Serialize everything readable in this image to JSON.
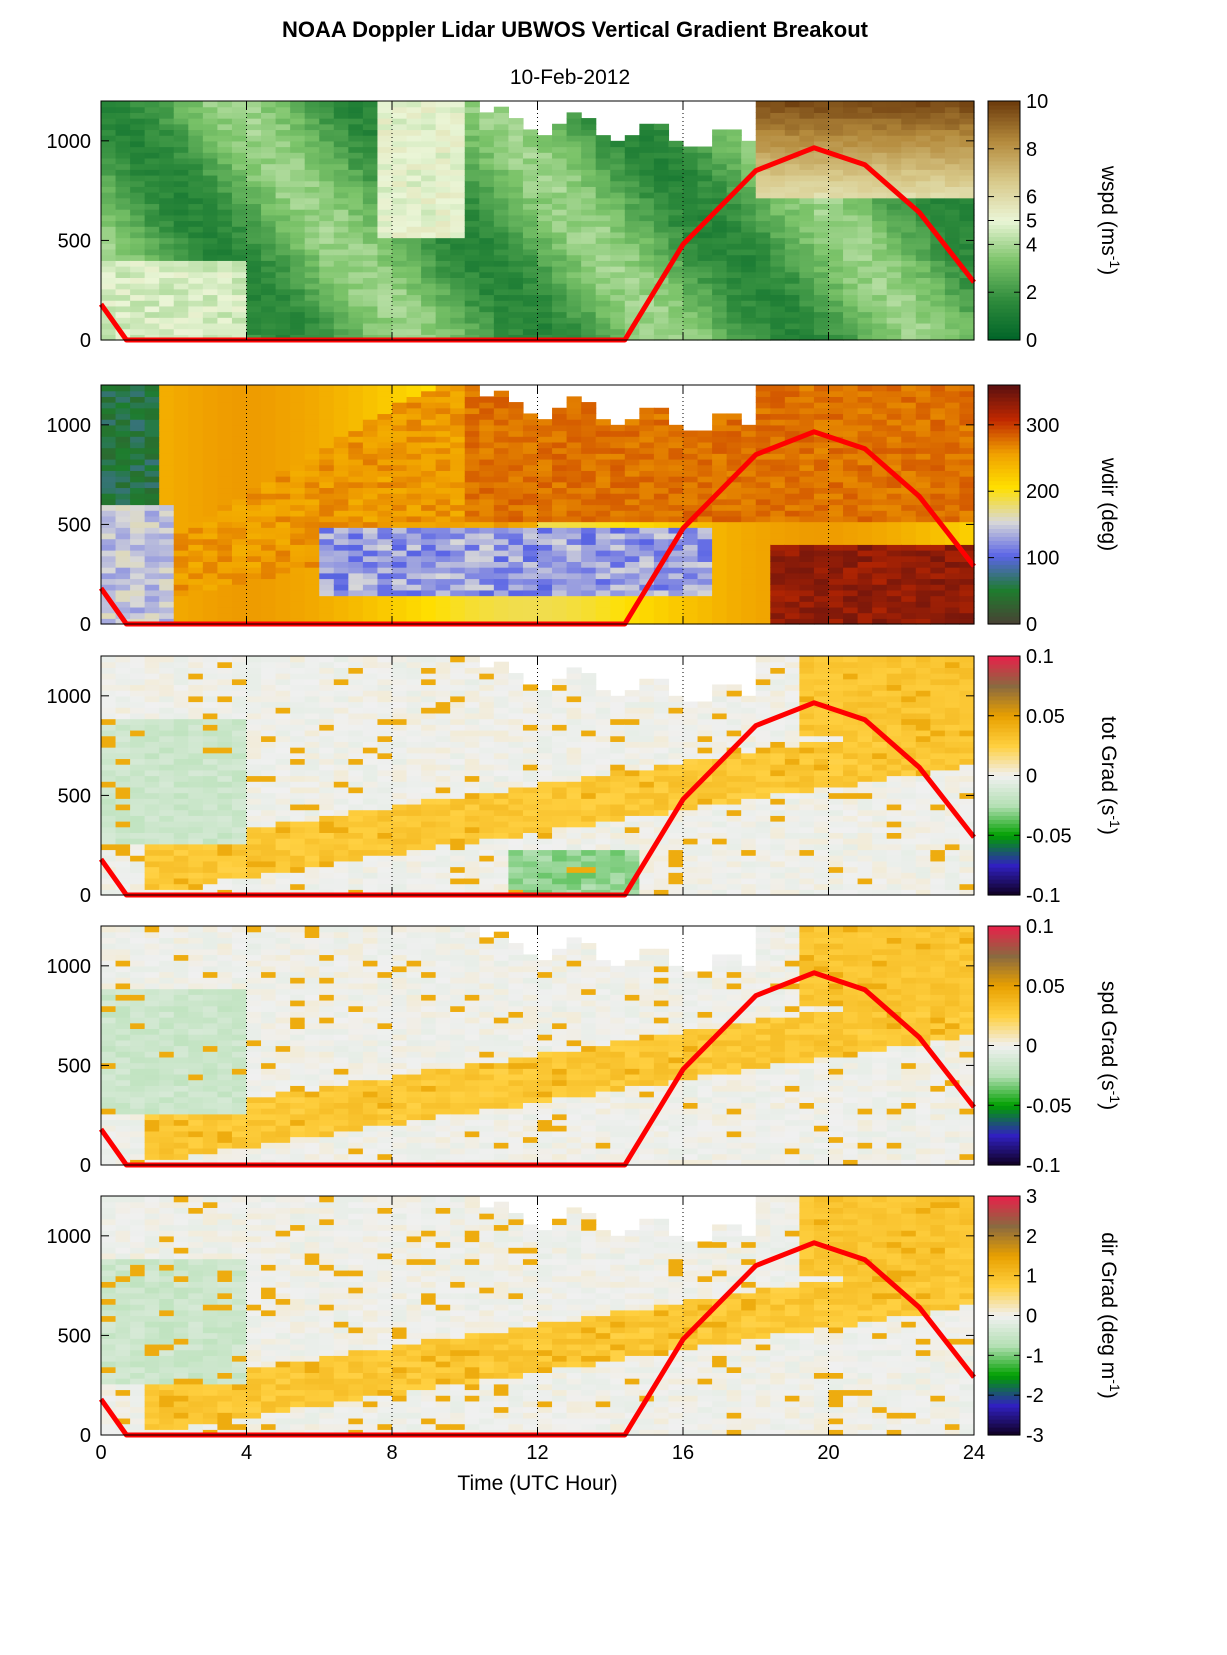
{
  "title": "NOAA Doppler Lidar  UBWOS  Vertical Gradient Breakout",
  "subtitle": "10-Feb-2012",
  "xlabel": "Time (UTC Hour)",
  "colors": {
    "curve": "#ff0000",
    "wspd": [
      "#006428",
      "#2e8b3c",
      "#7cc46a",
      "#eaf5d6",
      "#d8c98a",
      "#b48a3c",
      "#6b3a0c"
    ],
    "wdir": [
      "#4a4034",
      "#1e7d2e",
      "#5a64e6",
      "#d8d8d8",
      "#ffe000",
      "#f0a000",
      "#c02800",
      "#5a1010"
    ],
    "grad": [
      "#100020",
      "#3020c0",
      "#00a000",
      "#b4e0b4",
      "#f0f0f0",
      "#ffd040",
      "#e8a000",
      "#8a6a40",
      "#e8204a"
    ]
  },
  "chart_data": [
    {
      "type": "heatmap",
      "name": "wspd",
      "ylabel": "wspd (ms",
      "ylabel_sup": "-1",
      "ylabel_end": ")",
      "xlim": [
        0,
        24
      ],
      "ylim": [
        0,
        1200
      ],
      "yticks": [
        "0",
        "500",
        "1000"
      ],
      "clim": [
        0,
        10
      ],
      "cticks": [
        "0",
        "2",
        "4",
        "5",
        "6",
        "8",
        "10"
      ],
      "curve": {
        "x": [
          0,
          0.7,
          14.4,
          16,
          18,
          19.6,
          21,
          22.5,
          24
        ],
        "y": [
          180,
          0,
          0,
          480,
          850,
          965,
          880,
          640,
          290
        ]
      }
    },
    {
      "type": "heatmap",
      "name": "wdir",
      "ylabel": "wdir (deg)",
      "xlim": [
        0,
        24
      ],
      "ylim": [
        0,
        1200
      ],
      "yticks": [
        "0",
        "500",
        "1000"
      ],
      "clim": [
        0,
        360
      ],
      "cticks": [
        "0",
        "100",
        "200",
        "300"
      ],
      "curve": {
        "x": [
          0,
          0.7,
          14.4,
          16,
          18,
          19.6,
          21,
          22.5,
          24
        ],
        "y": [
          180,
          0,
          0,
          480,
          850,
          965,
          880,
          640,
          290
        ]
      }
    },
    {
      "type": "heatmap",
      "name": "tot Grad",
      "ylabel": "tot Grad (s",
      "ylabel_sup": "-1",
      "ylabel_end": ")",
      "xlim": [
        0,
        24
      ],
      "ylim": [
        0,
        1200
      ],
      "yticks": [
        "0",
        "500",
        "1000"
      ],
      "clim": [
        -0.1,
        0.1
      ],
      "cticks": [
        "-0.1",
        "-0.05",
        "0",
        "0.05",
        "0.1"
      ],
      "curve": {
        "x": [
          0,
          0.7,
          14.4,
          16,
          18,
          19.6,
          21,
          22.5,
          24
        ],
        "y": [
          180,
          0,
          0,
          480,
          850,
          965,
          880,
          640,
          290
        ]
      }
    },
    {
      "type": "heatmap",
      "name": "spd Grad",
      "ylabel": "spd Grad (s",
      "ylabel_sup": "-1",
      "ylabel_end": ")",
      "xlim": [
        0,
        24
      ],
      "ylim": [
        0,
        1200
      ],
      "yticks": [
        "0",
        "500",
        "1000"
      ],
      "clim": [
        -0.1,
        0.1
      ],
      "cticks": [
        "-0.1",
        "-0.05",
        "0",
        "0.05",
        "0.1"
      ],
      "curve": {
        "x": [
          0,
          0.7,
          14.4,
          16,
          18,
          19.6,
          21,
          22.5,
          24
        ],
        "y": [
          180,
          0,
          0,
          480,
          850,
          965,
          880,
          640,
          290
        ]
      }
    },
    {
      "type": "heatmap",
      "name": "dir Grad",
      "ylabel": "dir Grad (deg m",
      "ylabel_sup": "-1",
      "ylabel_end": ")",
      "xlim": [
        0,
        24
      ],
      "ylim": [
        0,
        1200
      ],
      "yticks": [
        "0",
        "500",
        "1000"
      ],
      "clim": [
        -3,
        3
      ],
      "cticks": [
        "-3",
        "-2",
        "-1",
        "0",
        "1",
        "2",
        "3"
      ],
      "curve": {
        "x": [
          0,
          0.7,
          14.4,
          16,
          18,
          19.6,
          21,
          22.5,
          24
        ],
        "y": [
          180,
          0,
          0,
          480,
          850,
          965,
          880,
          640,
          290
        ]
      }
    }
  ],
  "xticks": [
    "0",
    "4",
    "8",
    "12",
    "16",
    "20",
    "24"
  ],
  "grid_x": [
    4,
    8,
    12,
    16,
    20
  ]
}
